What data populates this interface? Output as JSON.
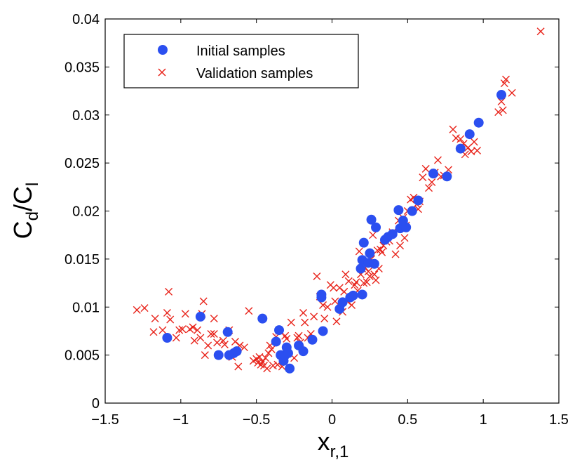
{
  "chart_data": {
    "type": "scatter",
    "title": "",
    "xlabel": {
      "main": "x",
      "sub": "r,1"
    },
    "ylabel": {
      "num": "C",
      "num_sub": "d",
      "sep": "/",
      "den": "C",
      "den_sub": "l"
    },
    "xlim": [
      -1.5,
      1.5
    ],
    "ylim": [
      0,
      0.04
    ],
    "xticks": [
      -1.5,
      -1,
      -0.5,
      0,
      0.5,
      1,
      1.5
    ],
    "xtick_labels": [
      "−1.5",
      "−1",
      "−0.5",
      "0",
      "0.5",
      "1",
      "1.5"
    ],
    "yticks": [
      0,
      0.005,
      0.01,
      0.015,
      0.02,
      0.025,
      0.03,
      0.035,
      0.04
    ],
    "ytick_labels": [
      "0",
      "0.005",
      "0.01",
      "0.015",
      "0.02",
      "0.025",
      "0.03",
      "0.035",
      "0.04"
    ],
    "grid": false,
    "legend_position": "top-left",
    "series": [
      {
        "name": "Initial samples",
        "marker": "circle",
        "color": "#2b4ff0",
        "x": [
          -1.09,
          -0.87,
          -0.75,
          -0.69,
          -0.68,
          -0.65,
          -0.63,
          -0.46,
          -0.37,
          -0.35,
          -0.34,
          -0.32,
          -0.31,
          -0.3,
          -0.29,
          -0.28,
          -0.22,
          -0.19,
          -0.13,
          -0.07,
          -0.07,
          -0.06,
          0.05,
          0.07,
          0.12,
          0.14,
          0.19,
          0.2,
          0.2,
          0.21,
          0.24,
          0.25,
          0.26,
          0.28,
          0.29,
          0.35,
          0.37,
          0.4,
          0.44,
          0.45,
          0.47,
          0.49,
          0.53,
          0.57,
          0.67,
          0.76,
          0.85,
          0.91,
          0.97,
          1.12
        ],
        "y": [
          0.0068,
          0.009,
          0.005,
          0.0074,
          0.005,
          0.0052,
          0.0054,
          0.0088,
          0.0064,
          0.0076,
          0.005,
          0.0044,
          0.005,
          0.0058,
          0.0052,
          0.0036,
          0.006,
          0.0054,
          0.0066,
          0.011,
          0.0113,
          0.0075,
          0.0098,
          0.0105,
          0.011,
          0.0112,
          0.014,
          0.0113,
          0.0149,
          0.0167,
          0.0146,
          0.0156,
          0.0191,
          0.0145,
          0.0183,
          0.017,
          0.0173,
          0.0176,
          0.0201,
          0.0182,
          0.019,
          0.0183,
          0.02,
          0.0211,
          0.0239,
          0.0236,
          0.0265,
          0.028,
          0.0292,
          0.0321
        ]
      },
      {
        "name": "Validation samples",
        "marker": "x",
        "color": "#e8231a",
        "x": [
          -1.29,
          -1.24,
          -1.18,
          -1.17,
          -1.12,
          -1.09,
          -1.08,
          -1.07,
          -1.03,
          -1.01,
          -0.99,
          -0.97,
          -0.94,
          -0.92,
          -0.91,
          -0.89,
          -0.87,
          -0.85,
          -0.86,
          -0.84,
          -0.82,
          -0.8,
          -0.78,
          -0.78,
          -0.76,
          -0.72,
          -0.71,
          -0.68,
          -0.66,
          -0.64,
          -0.62,
          -0.61,
          -0.58,
          -0.55,
          -0.52,
          -0.5,
          -0.49,
          -0.48,
          -0.47,
          -0.46,
          -0.45,
          -0.44,
          -0.43,
          -0.42,
          -0.41,
          -0.4,
          -0.39,
          -0.37,
          -0.36,
          -0.35,
          -0.33,
          -0.31,
          -0.3,
          -0.27,
          -0.25,
          -0.23,
          -0.22,
          -0.21,
          -0.19,
          -0.18,
          -0.16,
          -0.14,
          -0.12,
          -0.1,
          -0.08,
          -0.06,
          -0.05,
          -0.03,
          -0.01,
          0.01,
          0.02,
          0.03,
          0.05,
          0.07,
          0.08,
          0.09,
          0.1,
          0.11,
          0.12,
          0.13,
          0.15,
          0.16,
          0.17,
          0.18,
          0.19,
          0.2,
          0.21,
          0.22,
          0.23,
          0.24,
          0.25,
          0.26,
          0.27,
          0.28,
          0.29,
          0.3,
          0.31,
          0.32,
          0.33,
          0.34,
          0.36,
          0.38,
          0.4,
          0.42,
          0.44,
          0.45,
          0.47,
          0.48,
          0.49,
          0.5,
          0.52,
          0.54,
          0.56,
          0.57,
          0.58,
          0.6,
          0.62,
          0.64,
          0.66,
          0.68,
          0.7,
          0.72,
          0.74,
          0.77,
          0.8,
          0.82,
          0.85,
          0.87,
          0.88,
          0.9,
          0.92,
          0.94,
          0.96,
          1.1,
          1.12,
          1.13,
          1.14,
          1.15,
          1.19,
          1.38
        ],
        "y": [
          0.0097,
          0.0099,
          0.0074,
          0.0088,
          0.0076,
          0.0094,
          0.0116,
          0.0087,
          0.0068,
          0.0076,
          0.0077,
          0.0093,
          0.0077,
          0.0079,
          0.0065,
          0.0076,
          0.0068,
          0.0106,
          0.0093,
          0.005,
          0.006,
          0.0072,
          0.0072,
          0.0088,
          0.0063,
          0.0065,
          0.0061,
          0.0076,
          0.0048,
          0.0064,
          0.0038,
          0.006,
          0.0058,
          0.0096,
          0.0044,
          0.0046,
          0.0042,
          0.0048,
          0.004,
          0.0043,
          0.0039,
          0.0047,
          0.0036,
          0.0052,
          0.006,
          0.0056,
          0.0039,
          0.0069,
          0.004,
          0.0075,
          0.0038,
          0.007,
          0.0067,
          0.0084,
          0.0047,
          0.0068,
          0.007,
          0.0063,
          0.0094,
          0.0084,
          0.0068,
          0.0072,
          0.009,
          0.0132,
          0.0111,
          0.0102,
          0.0088,
          0.01,
          0.0123,
          0.012,
          0.0106,
          0.0085,
          0.012,
          0.0095,
          0.0116,
          0.0134,
          0.0106,
          0.0127,
          0.011,
          0.0102,
          0.0123,
          0.0126,
          0.0117,
          0.0158,
          0.0134,
          0.014,
          0.0125,
          0.0141,
          0.0126,
          0.0137,
          0.0132,
          0.015,
          0.0175,
          0.0134,
          0.0128,
          0.0159,
          0.014,
          0.016,
          0.0157,
          0.0164,
          0.0168,
          0.0169,
          0.0178,
          0.0155,
          0.019,
          0.0164,
          0.0193,
          0.0172,
          0.0185,
          0.02,
          0.0212,
          0.0214,
          0.0207,
          0.0202,
          0.021,
          0.0235,
          0.0244,
          0.0224,
          0.023,
          0.024,
          0.0253,
          0.0236,
          0.0237,
          0.0243,
          0.0285,
          0.0276,
          0.0275,
          0.027,
          0.0259,
          0.0266,
          0.0262,
          0.0272,
          0.0263,
          0.0303,
          0.0314,
          0.0305,
          0.0333,
          0.0337,
          0.0323,
          0.0387
        ]
      }
    ]
  }
}
